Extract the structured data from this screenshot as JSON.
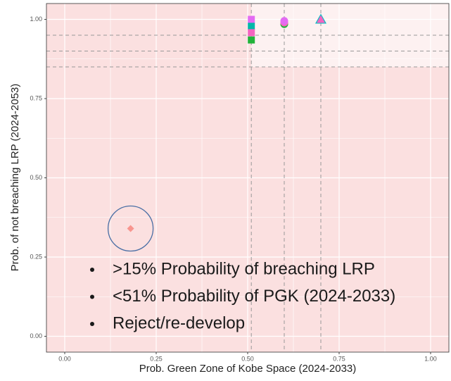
{
  "chart_data": {
    "type": "scatter",
    "x_label": "Prob. Green Zone of Kobe Space (2024-2033)",
    "y_label": "Prob. of not breaching LRP (2024-2053)",
    "xlim": [
      -0.05,
      1.05
    ],
    "ylim": [
      -0.05,
      1.05
    ],
    "xticks": [
      {
        "value": 0,
        "label": "0.00"
      },
      {
        "value": 0.25,
        "label": "0.25"
      },
      {
        "value": 0.5,
        "label": "0.50"
      },
      {
        "value": 0.75,
        "label": "0.75"
      },
      {
        "value": 1,
        "label": "1.00"
      }
    ],
    "yticks": [
      {
        "value": 0,
        "label": "0.00"
      },
      {
        "value": 0.25,
        "label": "0.25"
      },
      {
        "value": 0.5,
        "label": "0.50"
      },
      {
        "value": 0.75,
        "label": "0.75"
      },
      {
        "value": 1,
        "label": "1.00"
      }
    ],
    "grid": true,
    "vlines": [
      0.51,
      0.6,
      0.7
    ],
    "hlines": [
      0.85,
      0.9,
      0.95
    ],
    "series": [
      {
        "marker": "square",
        "x": [
          0.51,
          0.51,
          0.51,
          0.51
        ],
        "values": [
          1.0,
          0.978,
          0.958,
          0.935
        ],
        "colors": [
          "#e36bf3",
          "#00b8a8",
          "#f564c0",
          "#22b33a"
        ]
      },
      {
        "marker": "circle",
        "x": [
          0.6,
          0.6,
          0.6
        ],
        "values": [
          0.985,
          0.99,
          0.995
        ],
        "colors": [
          "#22b33a",
          "#f564c0",
          "#e36bf3"
        ]
      },
      {
        "marker": "triangle",
        "x": [
          0.7,
          0.7
        ],
        "values": [
          1.0,
          1.0
        ],
        "colors": [
          "#00bfc4",
          "#f564c0"
        ]
      },
      {
        "marker": "diamond",
        "x": [
          0.18
        ],
        "values": [
          0.34
        ],
        "colors": [
          "#f8958f"
        ]
      }
    ],
    "annotations": [
      ">15% Probability of breaching LRP",
      "<51% Probability of PGK (2024-2033)",
      "Reject/re-develop"
    ]
  }
}
